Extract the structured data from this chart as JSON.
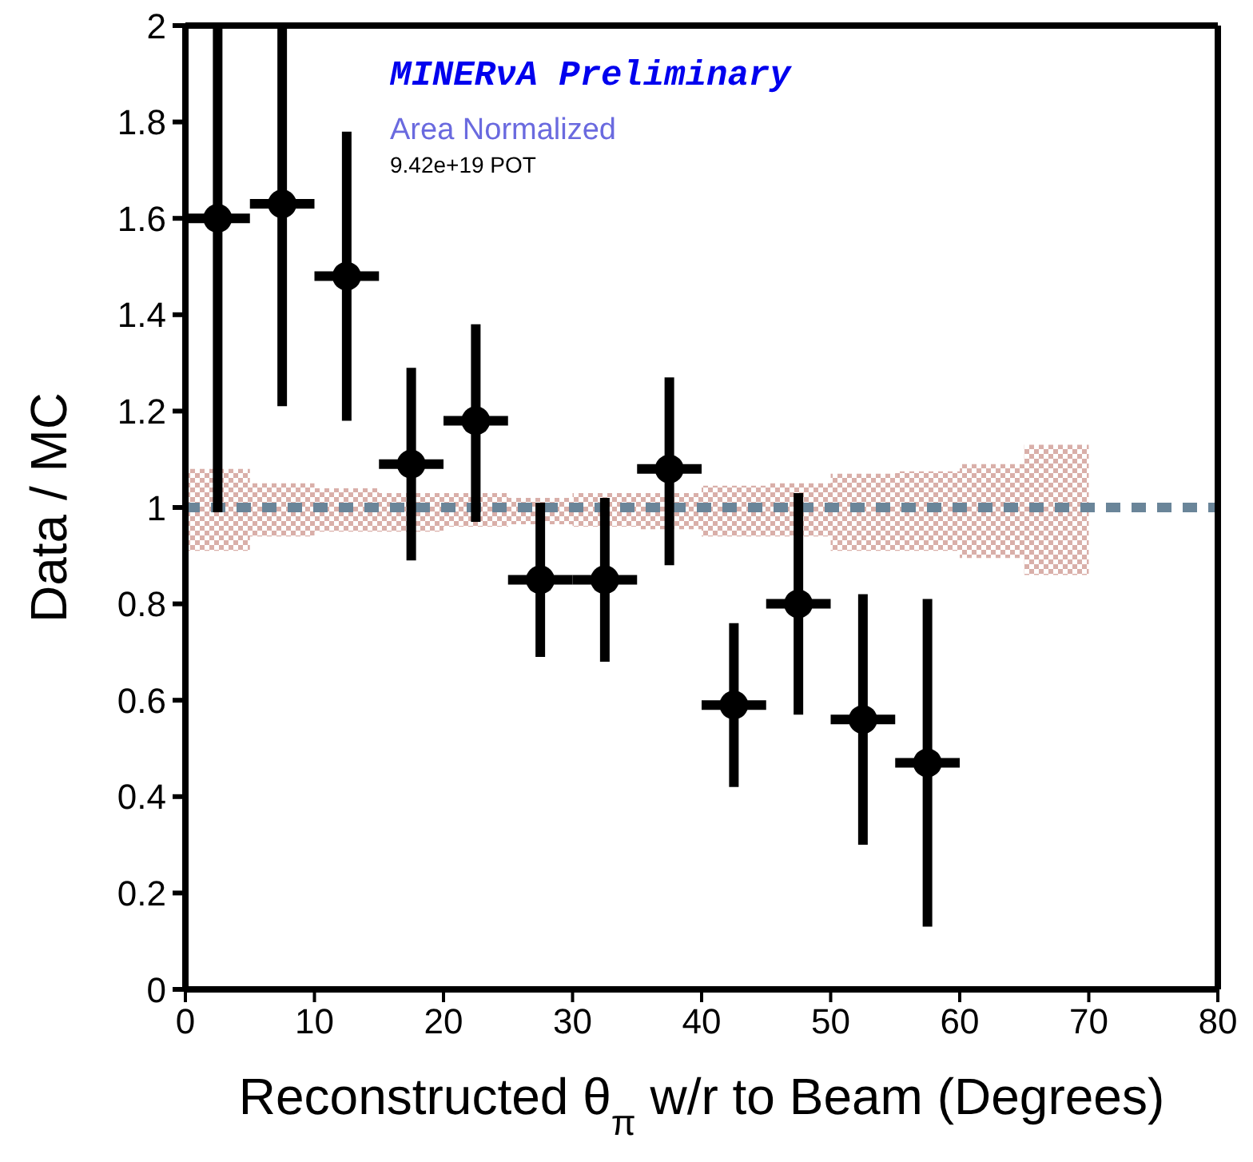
{
  "chart_data": {
    "type": "scatter",
    "xlabel": "Reconstructed θ$_{π}$ w/r to Beam (Degrees)",
    "ylabel": "Data / MC",
    "annotations": [
      "MINERνA Preliminary",
      "Area Normalized",
      "9.42e+19 POT"
    ],
    "xlim": [
      0,
      80
    ],
    "xticks": [
      0,
      10,
      20,
      30,
      40,
      50,
      60,
      70,
      80
    ],
    "ylim": [
      0,
      2
    ],
    "yticks": [
      0,
      0.2,
      0.4,
      0.6,
      0.8,
      1,
      1.2,
      1.4,
      1.6,
      1.8,
      2
    ],
    "grid": false,
    "legend": false,
    "marker": "circle",
    "series": [
      {
        "type": "step",
        "color": "#6a8599",
        "line_style": "dashed",
        "marker": "none",
        "x": [
          0,
          5,
          10,
          15,
          20,
          25,
          30,
          35,
          40,
          45,
          50,
          55,
          60,
          65,
          70,
          80
        ],
        "values": [
          1,
          1,
          1,
          1,
          1,
          1,
          1,
          1,
          1,
          1,
          1,
          1,
          1,
          1,
          1,
          1
        ],
        "lower": [
          0.91,
          0.94,
          0.95,
          0.95,
          0.96,
          0.965,
          0.96,
          0.955,
          0.94,
          0.94,
          0.91,
          0.91,
          0.895,
          0.86,
          0.86,
          null
        ],
        "upper": [
          1.08,
          1.05,
          1.04,
          1.03,
          1.03,
          1.02,
          1.03,
          1.03,
          1.045,
          1.05,
          1.07,
          1.075,
          1.09,
          1.13,
          1.13,
          null
        ]
      },
      {
        "type": "scatter",
        "color": "#000000",
        "x": [
          2.5,
          7.5,
          12.5,
          17.5,
          22.5,
          27.5,
          32.5,
          37.5,
          42.5,
          47.5,
          52.5,
          57.5
        ],
        "values": [
          1.6,
          1.63,
          1.48,
          1.09,
          1.18,
          0.85,
          0.85,
          1.08,
          0.59,
          0.8,
          0.56,
          0.47
        ],
        "errors": [
          [
            0.99,
            2
          ],
          [
            1.21,
            2
          ],
          [
            1.18,
            1.78
          ],
          [
            0.89,
            1.29
          ],
          [
            0.97,
            1.38
          ],
          [
            0.69,
            1.01
          ],
          [
            0.68,
            1.02
          ],
          [
            0.88,
            1.27
          ],
          [
            0.42,
            0.76
          ],
          [
            0.57,
            1.03
          ],
          [
            0.3,
            0.82
          ],
          [
            0.13,
            0.81
          ]
        ],
        "xerrors": [
          2.5,
          2.5,
          2.5,
          2.5,
          2.5,
          2.5,
          2.5,
          2.5,
          2.5,
          2.5,
          2.5,
          2.5
        ]
      }
    ]
  }
}
